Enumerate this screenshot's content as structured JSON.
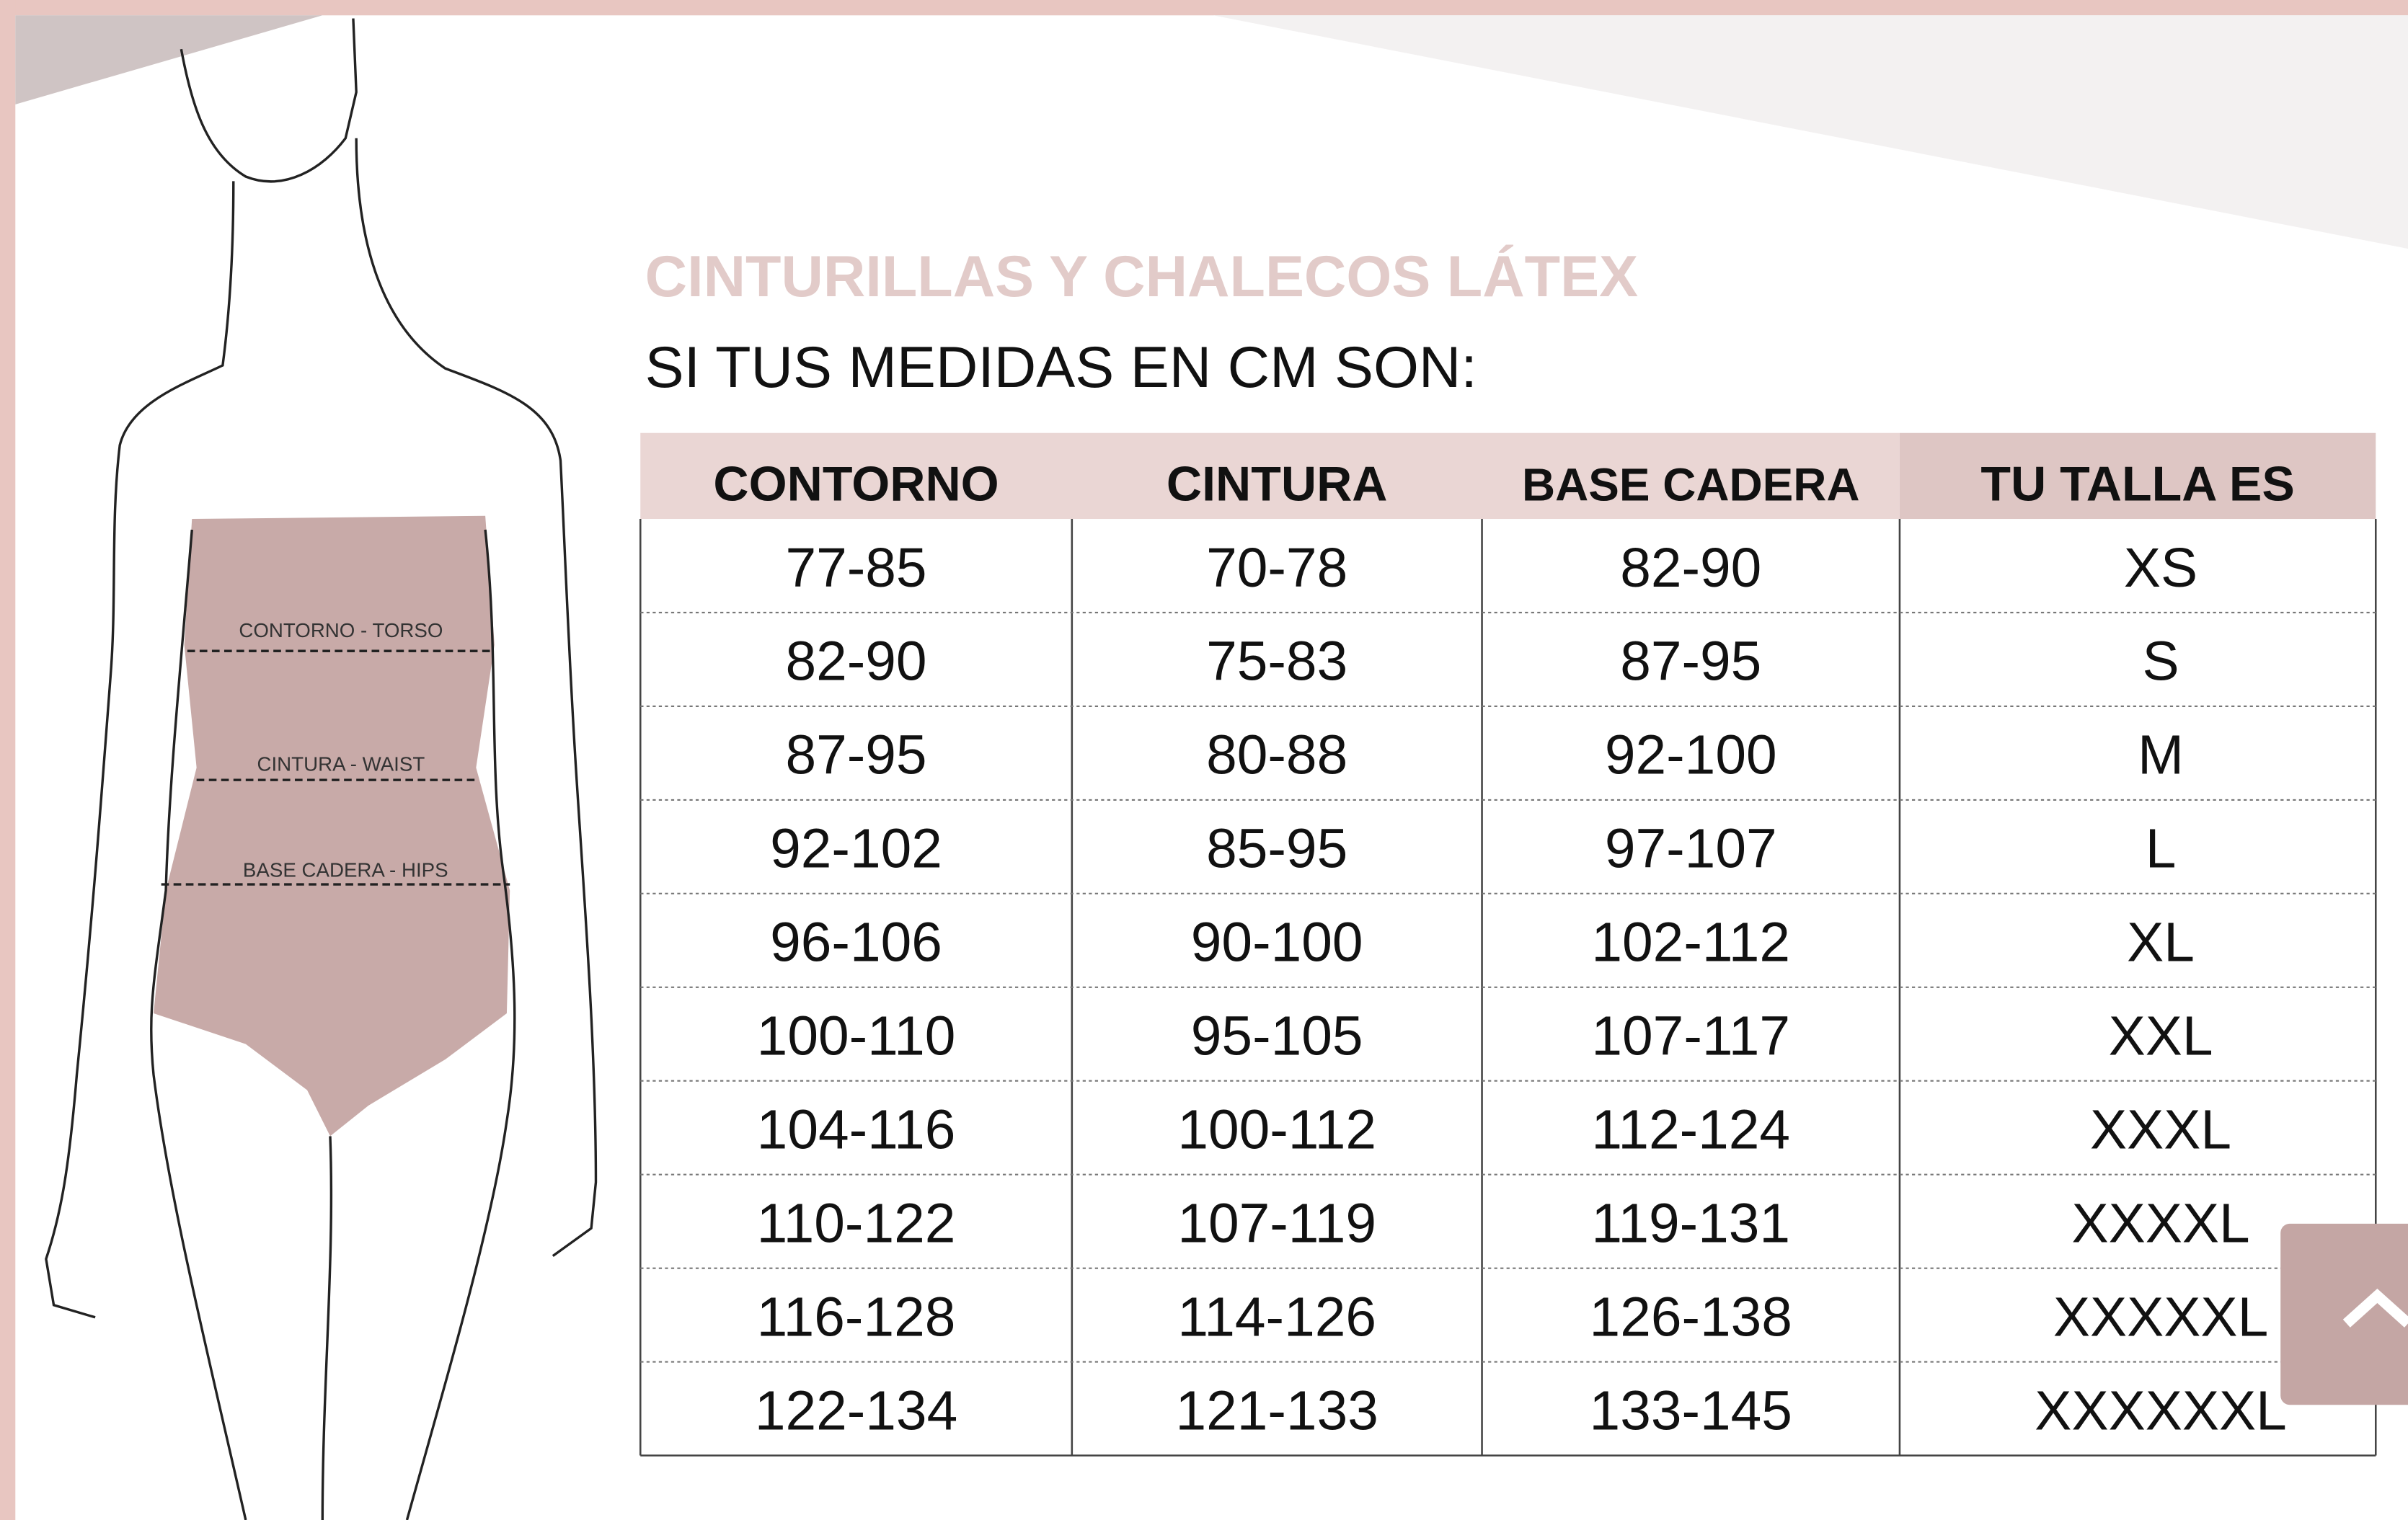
{
  "header": {
    "title": "CINTURILLAS Y CHALECOS LÁTEX",
    "subtitle": "SI TUS MEDIDAS EN CM SON:"
  },
  "figure": {
    "labels": [
      "CONTORNO - TORSO",
      "CINTURA - WAIST",
      "BASE CADERA - HIPS"
    ]
  },
  "table": {
    "columns": [
      "CONTORNO",
      "CINTURA",
      "BASE CADERA",
      "TU TALLA ES"
    ],
    "rows": [
      [
        "77-85",
        "70-78",
        "82-90",
        "XS"
      ],
      [
        "82-90",
        "75-83",
        "87-95",
        "S"
      ],
      [
        "87-95",
        "80-88",
        "92-100",
        "M"
      ],
      [
        "92-102",
        "85-95",
        "97-107",
        "L"
      ],
      [
        "96-106",
        "90-100",
        "102-112",
        "XL"
      ],
      [
        "100-110",
        "95-105",
        "107-117",
        "XXL"
      ],
      [
        "104-116",
        "100-112",
        "112-124",
        "XXXL"
      ],
      [
        "110-122",
        "107-119",
        "119-131",
        "XXXXL"
      ],
      [
        "116-128",
        "114-126",
        "126-138",
        "XXXXXL"
      ],
      [
        "122-134",
        "121-133",
        "133-145",
        "XXXXXXL"
      ]
    ]
  }
}
